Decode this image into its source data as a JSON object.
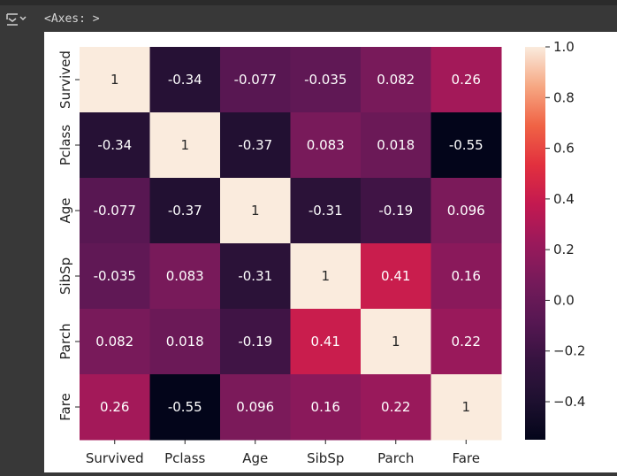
{
  "output": {
    "text": "<Axes: >",
    "icon": "output-toggle-icon"
  },
  "colors": {
    "background": "#383838",
    "figure": "#ffffff",
    "text": "#222222"
  },
  "chart_data": {
    "type": "heatmap",
    "x_labels": [
      "Survived",
      "Pclass",
      "Age",
      "SibSp",
      "Parch",
      "Fare"
    ],
    "y_labels": [
      "Survived",
      "Pclass",
      "Age",
      "SibSp",
      "Parch",
      "Fare"
    ],
    "values": [
      [
        1,
        -0.34,
        -0.077,
        -0.035,
        0.082,
        0.26
      ],
      [
        -0.34,
        1,
        -0.37,
        0.083,
        0.018,
        -0.55
      ],
      [
        -0.077,
        -0.37,
        1,
        -0.31,
        -0.19,
        0.096
      ],
      [
        -0.035,
        0.083,
        -0.31,
        1,
        0.41,
        0.16
      ],
      [
        0.082,
        0.018,
        -0.19,
        0.41,
        1,
        0.22
      ],
      [
        0.26,
        -0.55,
        0.096,
        0.16,
        0.22,
        1
      ]
    ],
    "value_labels": [
      [
        "1",
        "-0.34",
        "-0.077",
        "-0.035",
        "0.082",
        "0.26"
      ],
      [
        "-0.34",
        "1",
        "-0.37",
        "0.083",
        "0.018",
        "-0.55"
      ],
      [
        "-0.077",
        "-0.37",
        "1",
        "-0.31",
        "-0.19",
        "0.096"
      ],
      [
        "-0.035",
        "0.083",
        "-0.31",
        "1",
        "0.41",
        "0.16"
      ],
      [
        "0.082",
        "0.018",
        "-0.19",
        "0.41",
        "1",
        "0.22"
      ],
      [
        "0.26",
        "-0.55",
        "0.096",
        "0.16",
        "0.22",
        "1"
      ]
    ],
    "colormap": "rocket",
    "annotated": true,
    "colorbar": {
      "vmin": -0.55,
      "vmax": 1.0,
      "ticks": [
        -0.4,
        -0.2,
        0.0,
        0.2,
        0.4,
        0.6,
        0.8,
        1.0
      ],
      "tick_labels": [
        "−0.4",
        "−0.2",
        "0.0",
        "0.2",
        "0.4",
        "0.6",
        "0.8",
        "1.0"
      ],
      "placement": "right"
    }
  }
}
